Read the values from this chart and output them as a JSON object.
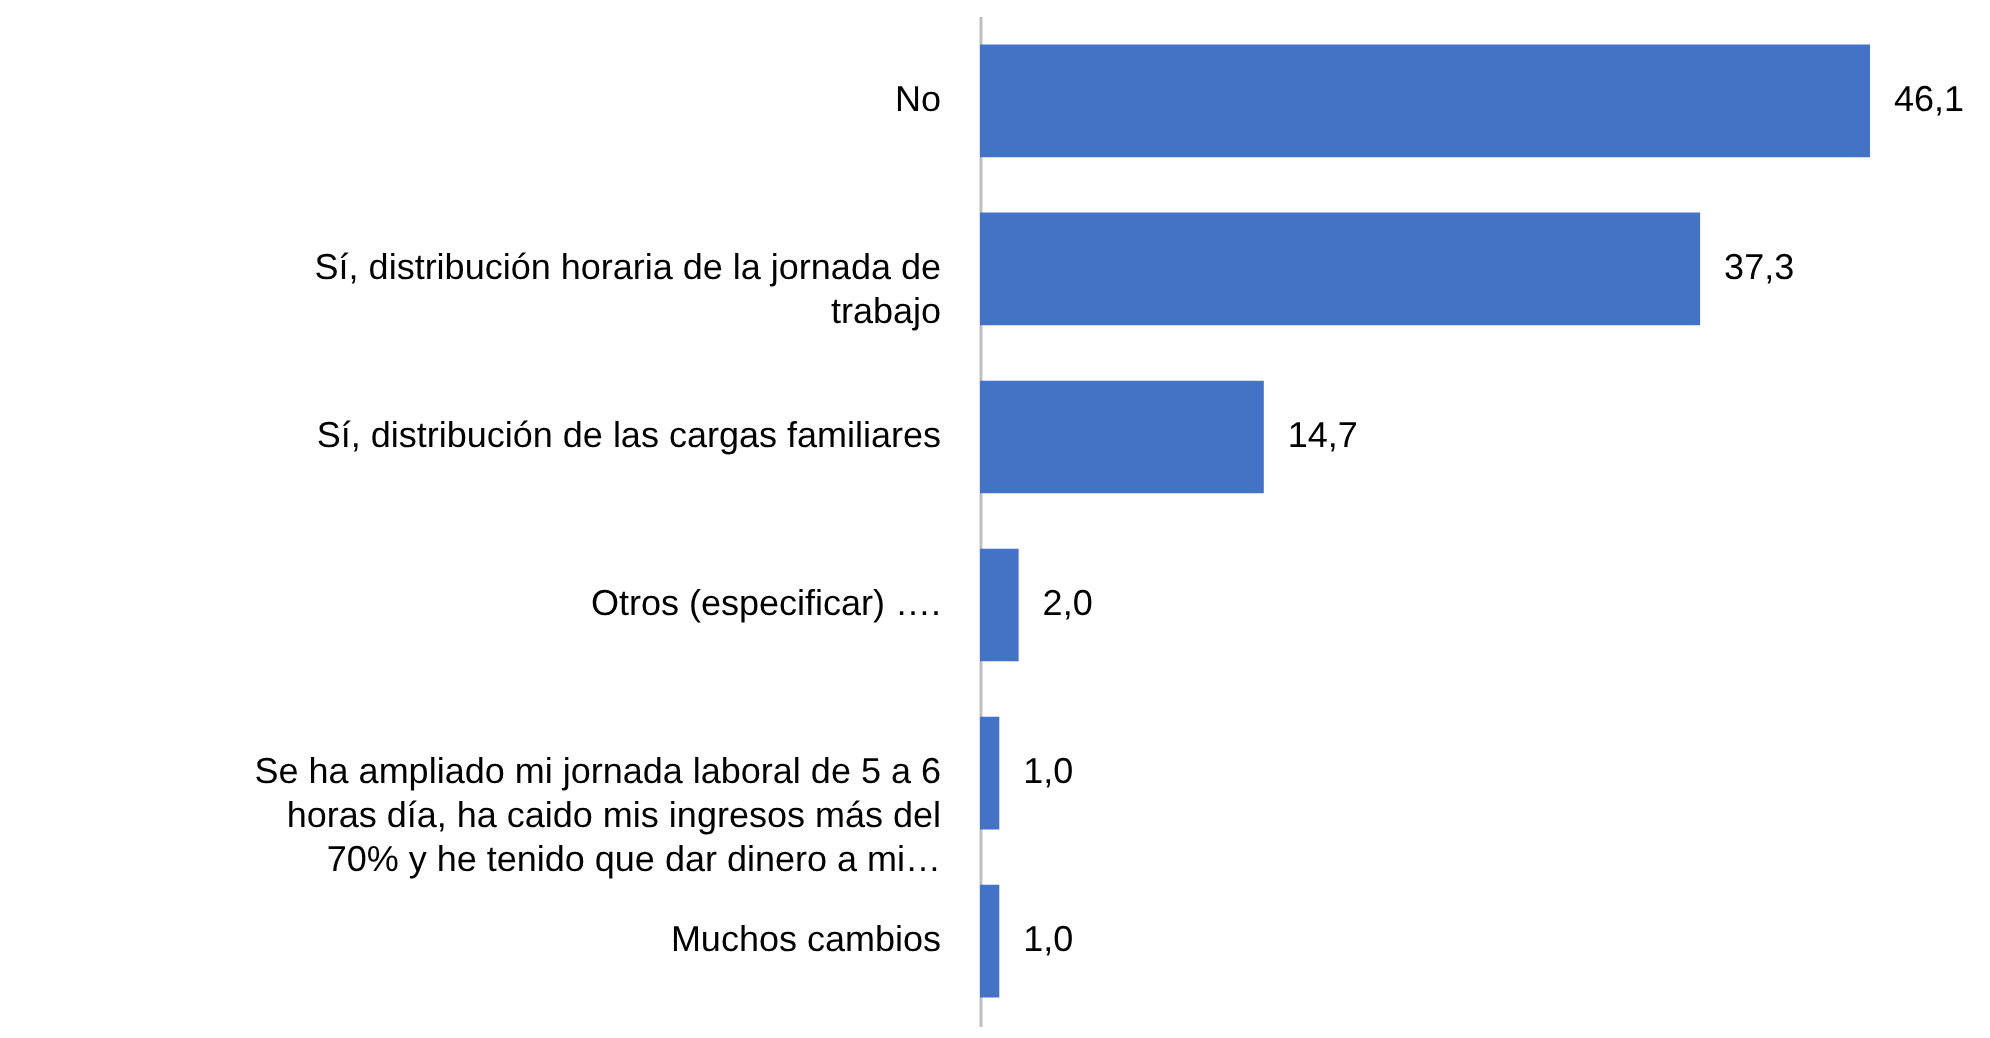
{
  "chart_data": {
    "type": "bar",
    "orientation": "horizontal",
    "categories": [
      "No",
      "Sí, distribución horaria de la jornada de trabajo",
      "Sí, distribución de las cargas familiares",
      "Otros (especificar) ….",
      "Se ha ampliado mi jornada laboral de 5 a 6 horas día, ha caido mis ingresos más del 70% y he tenido que dar dinero a mi…",
      "Muchos cambios"
    ],
    "values": [
      46.1,
      37.3,
      14.7,
      2.0,
      1.0,
      1.0
    ],
    "value_labels": [
      "46,1",
      "37,3",
      "14,7",
      "2,0",
      "1,0",
      "1,0"
    ],
    "color": "#4472c4",
    "grid": false
  }
}
